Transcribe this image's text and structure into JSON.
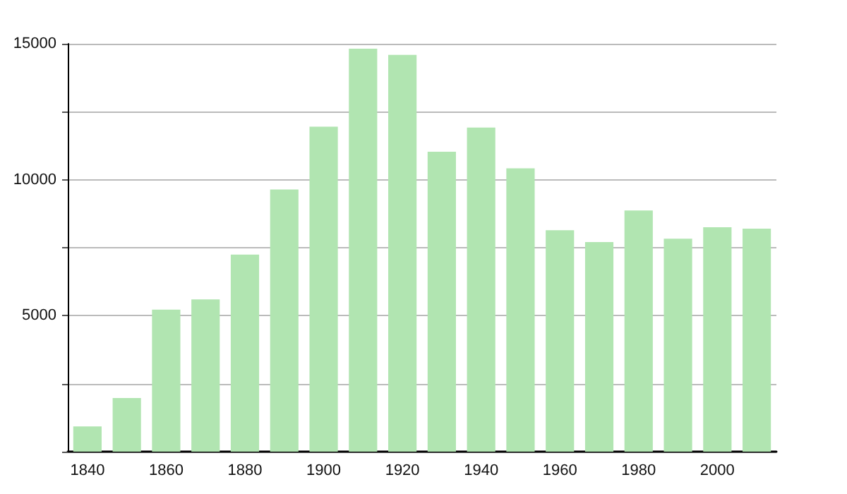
{
  "chart_data": {
    "type": "bar",
    "categories": [
      "1840",
      null,
      "1860",
      null,
      "1880",
      null,
      "1900",
      null,
      "1920",
      null,
      "1940",
      null,
      "1960",
      null,
      "1980",
      null,
      "2000",
      null
    ],
    "values": [
      930,
      1970,
      5220,
      5600,
      7250,
      9640,
      11950,
      14820,
      14590,
      11030,
      11920,
      10420,
      8140,
      7710,
      8870,
      7830,
      8250,
      8200
    ],
    "color": "#b1e5b1",
    "ylim": [
      0,
      15000
    ],
    "yticks": [
      {
        "value": 0,
        "label": null
      },
      {
        "value": 2500,
        "label": null
      },
      5000,
      {
        "value": 7500,
        "label": null
      },
      10000,
      {
        "value": 12500,
        "label": null
      },
      15000
    ],
    "grid": "y"
  }
}
